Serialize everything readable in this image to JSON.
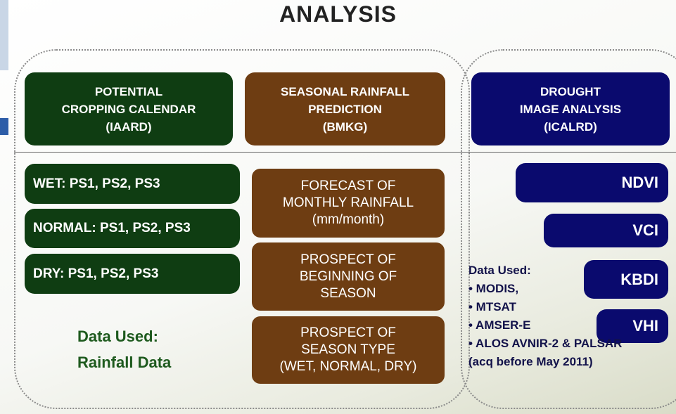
{
  "title": "ANALYSIS",
  "columns": [
    {
      "header": [
        "POTENTIAL",
        "CROPPING CALENDAR",
        "(IAARD)"
      ],
      "items": [
        "WET: PS1, PS2, PS3",
        "NORMAL: PS1, PS2, PS3",
        "DRY: PS1, PS2, PS3"
      ],
      "data_used": [
        "Data Used:",
        "Rainfall Data"
      ]
    },
    {
      "header": [
        "SEASONAL RAINFALL",
        "PREDICTION",
        "(BMKG)"
      ],
      "items": [
        [
          "FORECAST OF",
          "MONTHLY RAINFALL",
          "(mm/month)"
        ],
        [
          "PROSPECT OF",
          "BEGINNING OF",
          "SEASON"
        ],
        [
          "PROSPECT OF",
          "SEASON TYPE",
          "(WET, NORMAL, DRY)"
        ]
      ]
    },
    {
      "header": [
        "DROUGHT",
        "IMAGE ANALYSIS",
        "(ICALRD)"
      ],
      "items": [
        "NDVI",
        "VCI",
        "KBDI",
        "VHI"
      ],
      "data_used": [
        "Data Used:",
        "• MODIS,",
        "• MTSAT",
        "• AMSER-E",
        "• ALOS AVNIR-2 & PALSAR",
        "(acq before May 2011)"
      ]
    }
  ]
}
